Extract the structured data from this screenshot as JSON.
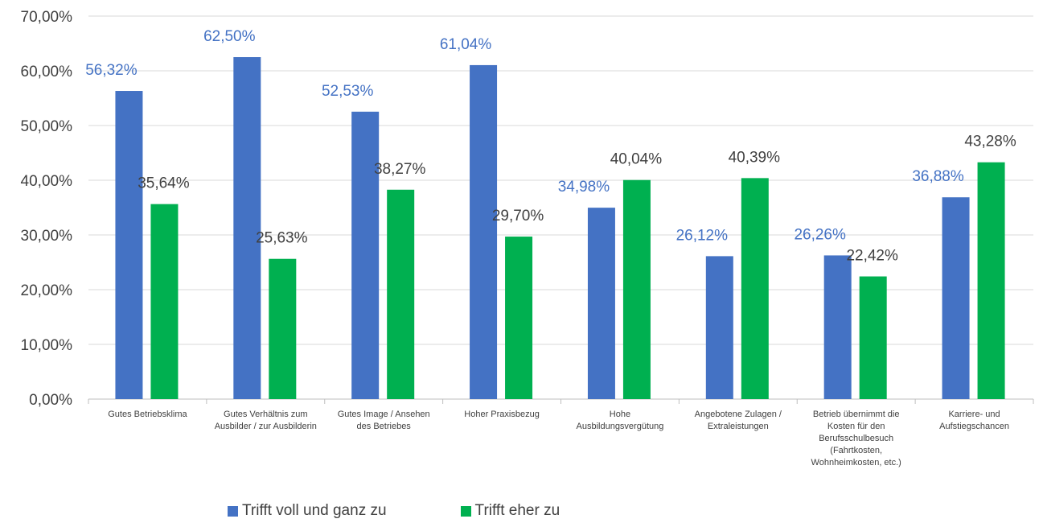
{
  "chart_data": {
    "type": "bar",
    "categories": [
      [
        "Gutes Betriebsklima"
      ],
      [
        "Gutes Verhältnis zum",
        "Ausbilder / zur Ausbilderin"
      ],
      [
        "Gutes Image / Ansehen",
        "des Betriebes"
      ],
      [
        "Hoher Praxisbezug"
      ],
      [
        "Hohe",
        "Ausbildungsvergütung"
      ],
      [
        "Angebotene Zulagen /",
        "Extraleistungen"
      ],
      [
        "Betrieb übernimmt die",
        "Kosten für den",
        "Berufsschulbesuch",
        "(Fahrtkosten,",
        "Wohnheimkosten, etc.)"
      ],
      [
        "Karriere- und",
        "Aufstiegschancen"
      ]
    ],
    "series": [
      {
        "name": "Trifft voll und ganz zu",
        "color": "#4472c4",
        "label_color": "#4472c4",
        "values": [
          56.32,
          62.5,
          52.53,
          61.04,
          34.98,
          26.12,
          26.26,
          36.88
        ],
        "labels": [
          "56,32%",
          "62,50%",
          "52,53%",
          "61,04%",
          "34,98%",
          "26,12%",
          "26,26%",
          "36,88%"
        ]
      },
      {
        "name": "Trifft eher zu",
        "color": "#00b050",
        "label_color": "#404040",
        "values": [
          35.64,
          25.63,
          38.27,
          29.7,
          40.04,
          40.39,
          22.42,
          43.28
        ],
        "labels": [
          "35,64%",
          "25,63%",
          "38,27%",
          "29,70%",
          "40,04%",
          "40,39%",
          "22,42%",
          "43,28%"
        ]
      }
    ],
    "ylim": [
      0,
      70
    ],
    "yticks": [
      "0,00%",
      "10,00%",
      "20,00%",
      "30,00%",
      "40,00%",
      "50,00%",
      "60,00%",
      "70,00%"
    ],
    "grid": true,
    "legend_position": "bottom"
  },
  "legend": {
    "items": [
      {
        "label": "Trifft voll und ganz zu",
        "color": "#4472c4"
      },
      {
        "label": "Trifft eher zu",
        "color": "#00b050"
      }
    ]
  }
}
